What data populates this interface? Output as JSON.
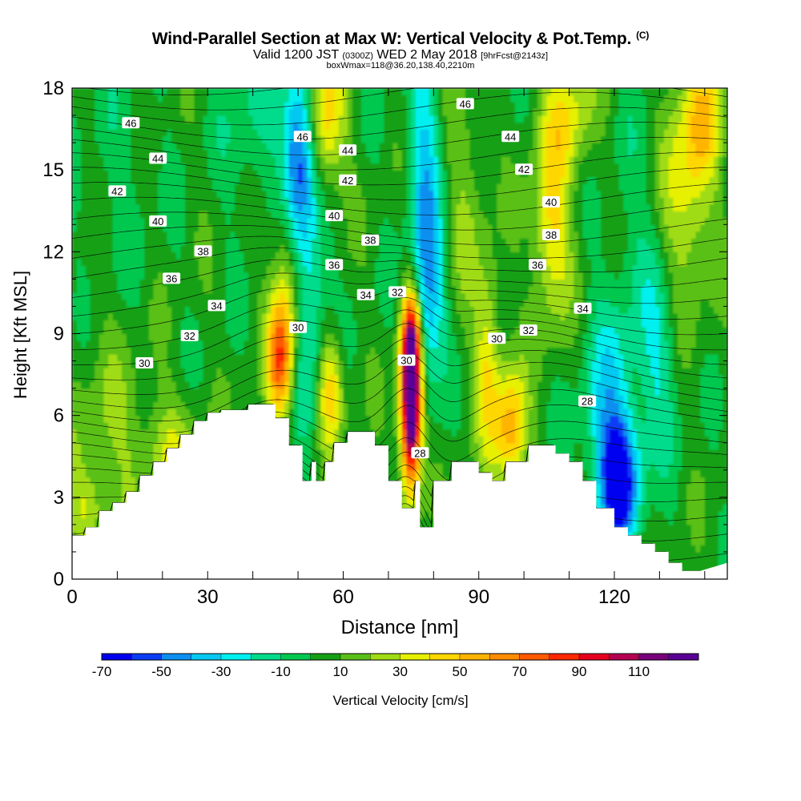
{
  "header": {
    "title": "Wind-Parallel Section at Max W: Vertical Velocity & Pot.Temp.",
    "copyright": "(C)",
    "valid_prefix": "Valid 1200 JST",
    "valid_utc": "(0300Z)",
    "valid_date": "WED 2 May 2018",
    "forecast": "[9hrFcst@2143z]",
    "box_info": "boxWmax=118@36.20,138.40,2210m"
  },
  "chart_data": {
    "type": "heatmap",
    "xlabel": "Distance [nm]",
    "ylabel": "Height [Kft MSL]",
    "xlim": [
      0,
      145
    ],
    "ylim": [
      0,
      18
    ],
    "x_ticks": [
      0,
      30,
      60,
      90,
      120
    ],
    "y_ticks": [
      0,
      3,
      6,
      9,
      12,
      15,
      18
    ],
    "colorbar": {
      "label": "Vertical Velocity [cm/s]",
      "tick_labels": [
        -70,
        -50,
        -30,
        -10,
        10,
        30,
        50,
        70,
        90,
        110
      ],
      "bins": [
        {
          "from": -70,
          "to": -60,
          "color": "#0000f0"
        },
        {
          "from": -60,
          "to": -50,
          "color": "#0a3cf5"
        },
        {
          "from": -50,
          "to": -40,
          "color": "#0a8ff0"
        },
        {
          "from": -40,
          "to": -30,
          "color": "#06c8f0"
        },
        {
          "from": -30,
          "to": -20,
          "color": "#00f0f0"
        },
        {
          "from": -20,
          "to": -10,
          "color": "#00dc8c"
        },
        {
          "from": -10,
          "to": 0,
          "color": "#00c850"
        },
        {
          "from": 0,
          "to": 10,
          "color": "#14a014"
        },
        {
          "from": 10,
          "to": 20,
          "color": "#5ac018"
        },
        {
          "from": 20,
          "to": 30,
          "color": "#a0dc14"
        },
        {
          "from": 30,
          "to": 40,
          "color": "#e6f000"
        },
        {
          "from": 40,
          "to": 50,
          "color": "#ffd700"
        },
        {
          "from": 50,
          "to": 60,
          "color": "#ffb400"
        },
        {
          "from": 60,
          "to": 70,
          "color": "#ff8c00"
        },
        {
          "from": 70,
          "to": 80,
          "color": "#ff5a00"
        },
        {
          "from": 80,
          "to": 90,
          "color": "#ff2800"
        },
        {
          "from": 90,
          "to": 100,
          "color": "#e6001e"
        },
        {
          "from": 100,
          "to": 110,
          "color": "#b40050"
        },
        {
          "from": 110,
          "to": 120,
          "color": "#78007a"
        },
        {
          "from": 120,
          "to": 130,
          "color": "#5a0096"
        }
      ]
    },
    "terrain_profile_kft": [
      [
        0,
        1.6
      ],
      [
        3,
        1.6
      ],
      [
        3,
        1.9
      ],
      [
        6,
        1.9
      ],
      [
        6,
        2.5
      ],
      [
        9,
        2.5
      ],
      [
        9,
        2.8
      ],
      [
        12,
        2.8
      ],
      [
        12,
        3.2
      ],
      [
        15,
        3.2
      ],
      [
        15,
        3.8
      ],
      [
        18,
        3.8
      ],
      [
        18,
        4.3
      ],
      [
        21,
        4.3
      ],
      [
        21,
        4.8
      ],
      [
        24,
        4.8
      ],
      [
        24,
        5.3
      ],
      [
        27,
        5.3
      ],
      [
        27,
        5.8
      ],
      [
        30,
        5.8
      ],
      [
        30,
        6.1
      ],
      [
        33,
        6.1
      ],
      [
        33,
        6.2
      ],
      [
        39,
        6.2
      ],
      [
        39,
        6.4
      ],
      [
        45,
        6.4
      ],
      [
        45,
        5.9
      ],
      [
        48,
        5.9
      ],
      [
        48,
        4.9
      ],
      [
        51,
        4.9
      ],
      [
        51,
        3.6
      ],
      [
        53,
        3.6
      ],
      [
        53,
        4.3
      ],
      [
        54,
        4.3
      ],
      [
        54,
        3.6
      ],
      [
        56,
        3.6
      ],
      [
        56,
        4.3
      ],
      [
        58,
        4.3
      ],
      [
        58,
        5.0
      ],
      [
        61,
        5.0
      ],
      [
        61,
        5.4
      ],
      [
        67,
        5.4
      ],
      [
        67,
        4.9
      ],
      [
        70,
        4.9
      ],
      [
        70,
        3.6
      ],
      [
        73,
        3.6
      ],
      [
        73,
        2.6
      ],
      [
        76,
        2.6
      ],
      [
        76,
        3.6
      ],
      [
        77,
        3.6
      ],
      [
        77,
        1.9
      ],
      [
        80,
        1.9
      ],
      [
        80,
        3.6
      ],
      [
        84,
        3.6
      ],
      [
        84,
        4.3
      ],
      [
        90,
        4.3
      ],
      [
        90,
        3.9
      ],
      [
        93,
        3.9
      ],
      [
        93,
        3.6
      ],
      [
        96,
        3.6
      ],
      [
        96,
        4.3
      ],
      [
        101,
        4.3
      ],
      [
        101,
        4.9
      ],
      [
        107,
        4.9
      ],
      [
        107,
        4.6
      ],
      [
        110,
        4.6
      ],
      [
        110,
        4.3
      ],
      [
        113,
        4.3
      ],
      [
        113,
        3.6
      ],
      [
        116,
        3.6
      ],
      [
        116,
        2.6
      ],
      [
        120,
        2.6
      ],
      [
        120,
        1.9
      ],
      [
        123,
        1.9
      ],
      [
        123,
        1.6
      ],
      [
        126,
        1.6
      ],
      [
        126,
        1.3
      ],
      [
        129,
        1.3
      ],
      [
        129,
        1.0
      ],
      [
        132,
        1.0
      ],
      [
        132,
        0.6
      ],
      [
        135,
        0.6
      ],
      [
        135,
        0.3
      ],
      [
        139,
        0.3
      ],
      [
        145,
        0.6
      ]
    ],
    "velocity_features": [
      {
        "x": 50,
        "z_kft": 15.5,
        "w_cms": -65,
        "sx": 2.5,
        "sz": 2.5
      },
      {
        "x": 52,
        "z_kft": 10.0,
        "w_cms": -35,
        "sx": 3.0,
        "sz": 3.0
      },
      {
        "x": 78,
        "z_kft": 14.0,
        "w_cms": -40,
        "sx": 2.5,
        "sz": 4.0
      },
      {
        "x": 79,
        "z_kft": 10.0,
        "w_cms": -25,
        "sx": 2.5,
        "sz": 2.0
      },
      {
        "x": 121,
        "z_kft": 3.5,
        "w_cms": -70,
        "sx": 3.0,
        "sz": 1.5
      },
      {
        "x": 119,
        "z_kft": 6.0,
        "w_cms": -35,
        "sx": 4.0,
        "sz": 2.5
      },
      {
        "x": 130,
        "z_kft": 8.0,
        "w_cms": -20,
        "sx": 3.0,
        "sz": 2.5
      },
      {
        "x": 75,
        "z_kft": 6.0,
        "w_cms": 125,
        "sx": 1.6,
        "sz": 2.0
      },
      {
        "x": 75,
        "z_kft": 8.5,
        "w_cms": 95,
        "sx": 1.5,
        "sz": 1.6
      },
      {
        "x": 56,
        "z_kft": 17.0,
        "w_cms": 45,
        "sx": 3.0,
        "sz": 2.0
      },
      {
        "x": 48,
        "z_kft": 11.0,
        "w_cms": 40,
        "sx": 2.5,
        "sz": 2.5
      },
      {
        "x": 46,
        "z_kft": 8.0,
        "w_cms": 65,
        "sx": 2.0,
        "sz": 1.5
      },
      {
        "x": 57,
        "z_kft": 7.0,
        "w_cms": 45,
        "sx": 2.0,
        "sz": 1.5
      },
      {
        "x": 97,
        "z_kft": 5.5,
        "w_cms": 55,
        "sx": 2.5,
        "sz": 1.5
      },
      {
        "x": 92,
        "z_kft": 8.0,
        "w_cms": 35,
        "sx": 2.0,
        "sz": 2.5
      },
      {
        "x": 106,
        "z_kft": 13.0,
        "w_cms": 40,
        "sx": 3.0,
        "sz": 2.5
      },
      {
        "x": 136,
        "z_kft": 14.5,
        "w_cms": 35,
        "sx": 4.0,
        "sz": 3.0
      },
      {
        "x": 140,
        "z_kft": 17.0,
        "w_cms": 30,
        "sx": 3.0,
        "sz": 1.5
      },
      {
        "x": 110,
        "z_kft": 17.0,
        "w_cms": 30,
        "sx": 4.0,
        "sz": 1.5
      },
      {
        "x": 22,
        "z_kft": 4.5,
        "w_cms": 25,
        "sx": 5.0,
        "sz": 1.5
      },
      {
        "x": 8,
        "z_kft": 5.0,
        "w_cms": 15,
        "sx": 6.0,
        "sz": 3.0
      },
      {
        "x": 3,
        "z_kft": 2.5,
        "w_cms": 20,
        "sx": 3.0,
        "sz": 1.0
      },
      {
        "x": 87,
        "z_kft": 14.0,
        "w_cms": 15,
        "sx": 3.0,
        "sz": 3.0
      },
      {
        "x": 40,
        "z_kft": 16.5,
        "w_cms": -15,
        "sx": 5.0,
        "sz": 2.0
      },
      {
        "x": 125,
        "z_kft": 12.0,
        "w_cms": -10,
        "sx": 5.0,
        "sz": 4.0
      },
      {
        "x": 10,
        "z_kft": 15.0,
        "w_cms": -8,
        "sx": 6.0,
        "sz": 3.0
      }
    ],
    "theta_contour_labels": [
      {
        "text": "46",
        "x": 13,
        "z_kft": 16.7
      },
      {
        "text": "44",
        "x": 19,
        "z_kft": 15.4
      },
      {
        "text": "42",
        "x": 10,
        "z_kft": 14.2
      },
      {
        "text": "40",
        "x": 19,
        "z_kft": 13.1
      },
      {
        "text": "38",
        "x": 29,
        "z_kft": 12.0
      },
      {
        "text": "36",
        "x": 22,
        "z_kft": 11.0
      },
      {
        "text": "34",
        "x": 32,
        "z_kft": 10.0
      },
      {
        "text": "32",
        "x": 26,
        "z_kft": 8.9
      },
      {
        "text": "30",
        "x": 16,
        "z_kft": 7.9
      },
      {
        "text": "46",
        "x": 51,
        "z_kft": 16.2
      },
      {
        "text": "44",
        "x": 61,
        "z_kft": 15.7
      },
      {
        "text": "42",
        "x": 61,
        "z_kft": 14.6
      },
      {
        "text": "40",
        "x": 58,
        "z_kft": 13.3
      },
      {
        "text": "38",
        "x": 66,
        "z_kft": 12.4
      },
      {
        "text": "36",
        "x": 58,
        "z_kft": 11.5
      },
      {
        "text": "34",
        "x": 65,
        "z_kft": 10.4
      },
      {
        "text": "32",
        "x": 72,
        "z_kft": 10.5
      },
      {
        "text": "30",
        "x": 50,
        "z_kft": 9.2
      },
      {
        "text": "30",
        "x": 74,
        "z_kft": 8.0
      },
      {
        "text": "28",
        "x": 77,
        "z_kft": 4.6
      },
      {
        "text": "46",
        "x": 87,
        "z_kft": 17.4
      },
      {
        "text": "44",
        "x": 97,
        "z_kft": 16.2
      },
      {
        "text": "42",
        "x": 100,
        "z_kft": 15.0
      },
      {
        "text": "40",
        "x": 106,
        "z_kft": 13.8
      },
      {
        "text": "38",
        "x": 106,
        "z_kft": 12.6
      },
      {
        "text": "36",
        "x": 103,
        "z_kft": 11.5
      },
      {
        "text": "34",
        "x": 113,
        "z_kft": 9.9
      },
      {
        "text": "32",
        "x": 101,
        "z_kft": 9.1
      },
      {
        "text": "30",
        "x": 94,
        "z_kft": 8.8
      },
      {
        "text": "28",
        "x": 114,
        "z_kft": 6.5
      }
    ]
  }
}
